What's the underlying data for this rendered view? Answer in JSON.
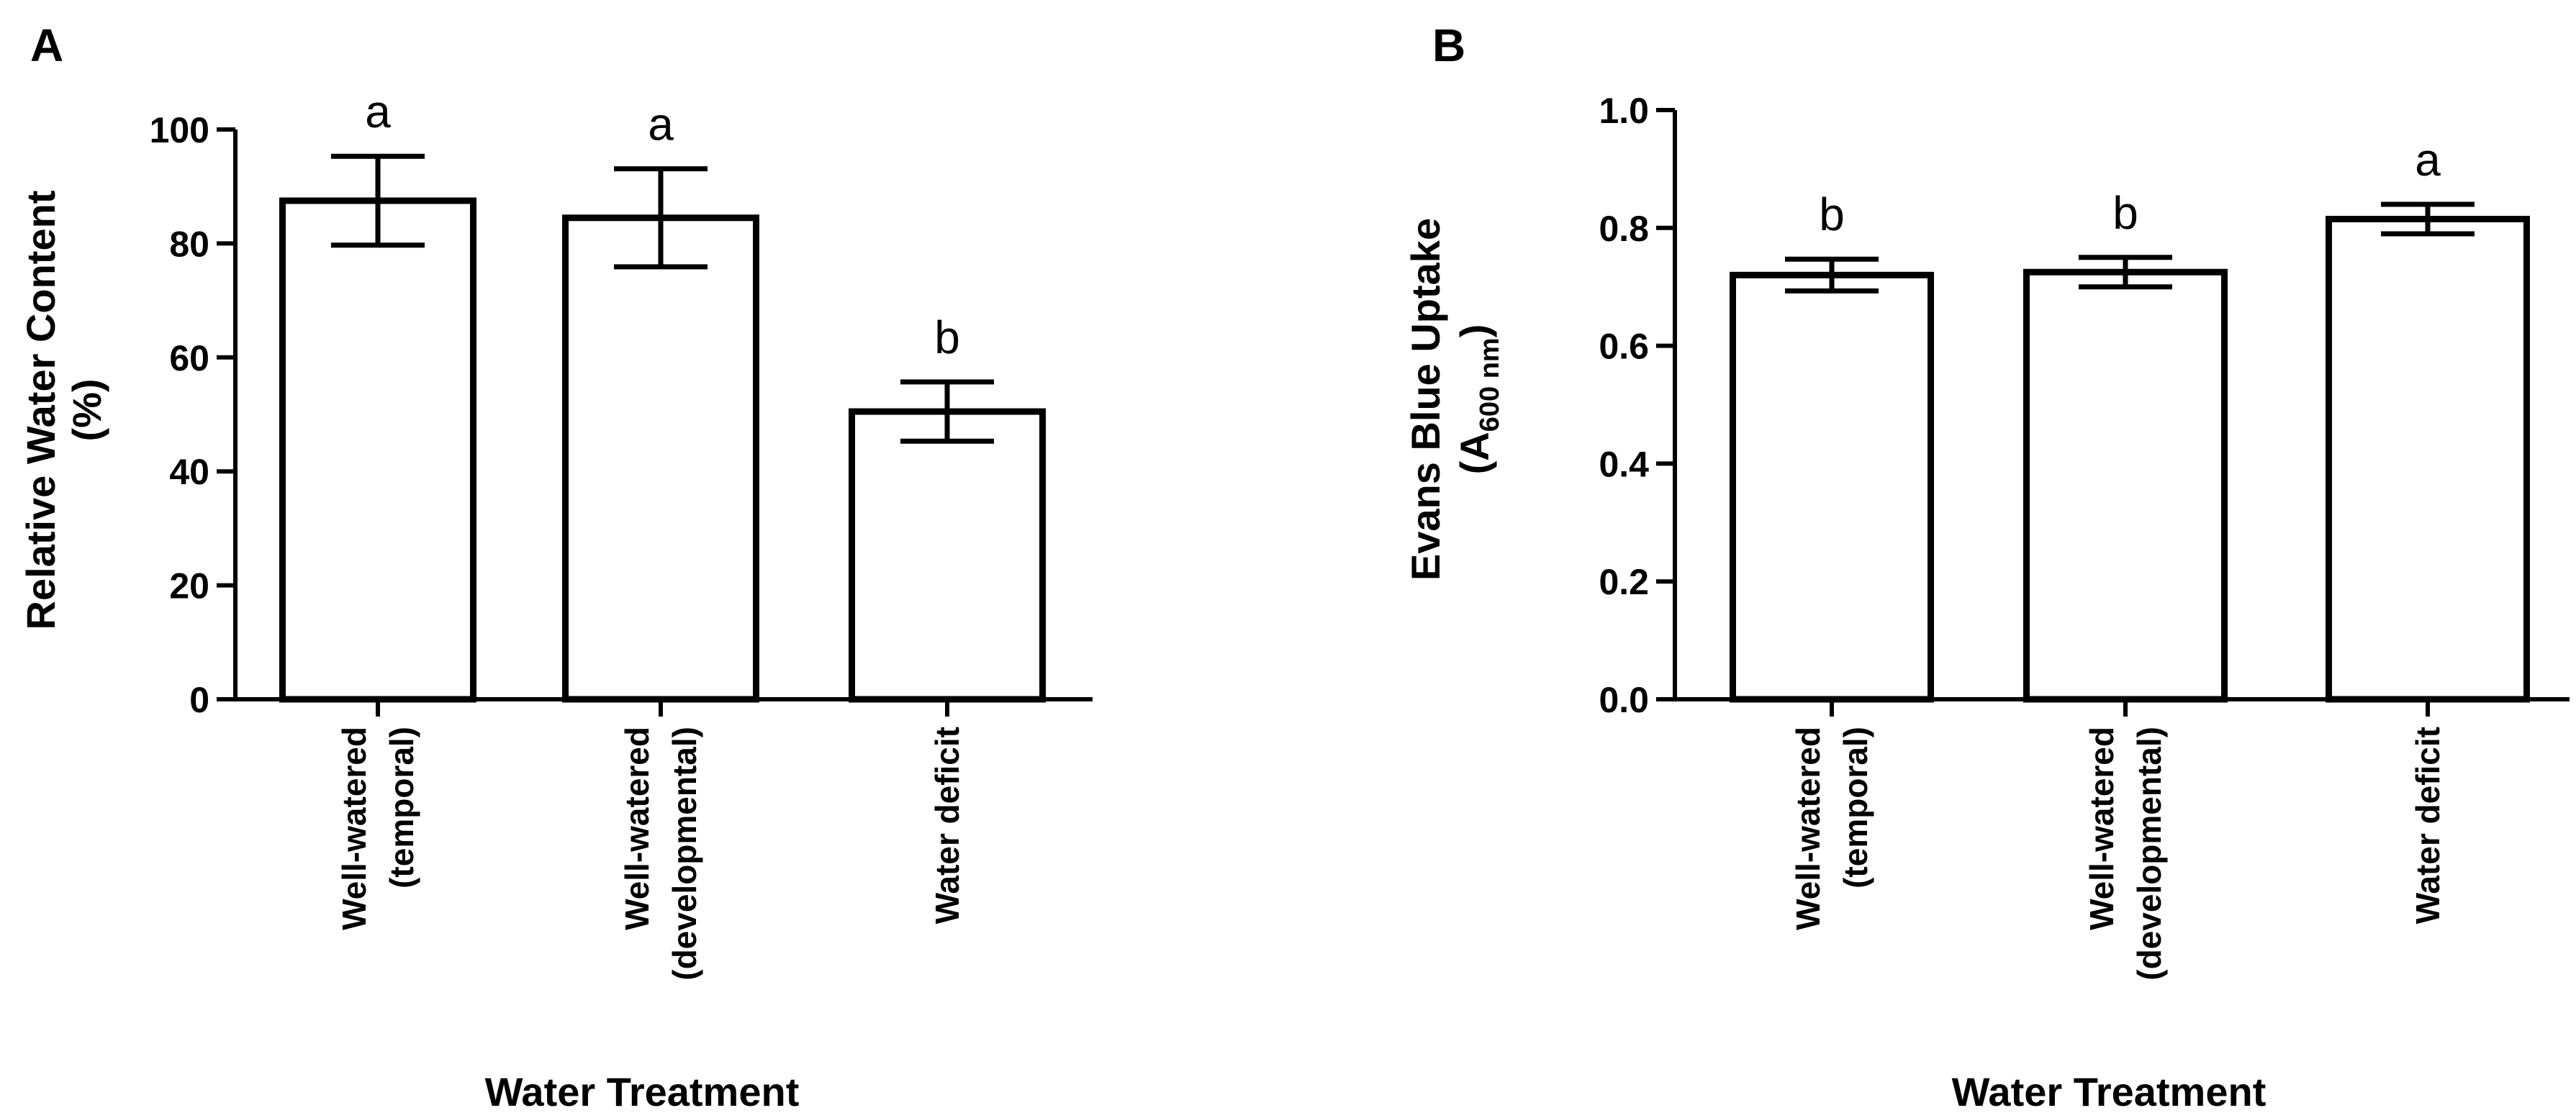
{
  "chart_data": [
    {
      "type": "bar",
      "panel_label": "A",
      "title": "",
      "categories": [
        [
          "Well-watered",
          "(temporal)"
        ],
        [
          "Well-watered",
          "(developmental)"
        ],
        [
          "Water deficit"
        ]
      ],
      "values": [
        87.5,
        84.5,
        50.5
      ],
      "errors": [
        7.8,
        8.6,
        5.2
      ],
      "significance": [
        "a",
        "a",
        "b"
      ],
      "ylabel_lines": [
        "Relative Water Content",
        "(%)"
      ],
      "xlabel": "Water Treatment",
      "ylim": [
        0,
        100
      ],
      "yticks": [
        0,
        20,
        40,
        60,
        80,
        100
      ],
      "ytick_labels": [
        "0",
        "20",
        "40",
        "60",
        "80",
        "100"
      ],
      "grid": false,
      "legend": "none",
      "bar_fill": "#ffffff",
      "bar_stroke": "#000000"
    },
    {
      "type": "bar",
      "panel_label": "B",
      "title": "",
      "categories": [
        [
          "Well-watered",
          "(temporal)"
        ],
        [
          "Well-watered",
          "(developmental)"
        ],
        [
          "Water deficit"
        ]
      ],
      "values": [
        0.72,
        0.725,
        0.815
      ],
      "errors": [
        0.027,
        0.025,
        0.025
      ],
      "significance": [
        "b",
        "b",
        "a"
      ],
      "ylabel_lines": [
        "Evans Blue Uptake",
        "(A600 nm)"
      ],
      "ylabel_main": "Evans Blue Uptake",
      "ylabel_unit_open": "(A",
      "ylabel_unit_sub": "600 nm",
      "ylabel_unit_close": ")",
      "xlabel": "Water Treatment",
      "ylim": [
        0,
        1.0
      ],
      "yticks": [
        0,
        0.2,
        0.4,
        0.6,
        0.8,
        1.0
      ],
      "ytick_labels": [
        "0.0",
        "0.2",
        "0.4",
        "0.6",
        "0.8",
        "1.0"
      ],
      "grid": false,
      "legend": "none",
      "bar_fill": "#ffffff",
      "bar_stroke": "#000000"
    }
  ]
}
